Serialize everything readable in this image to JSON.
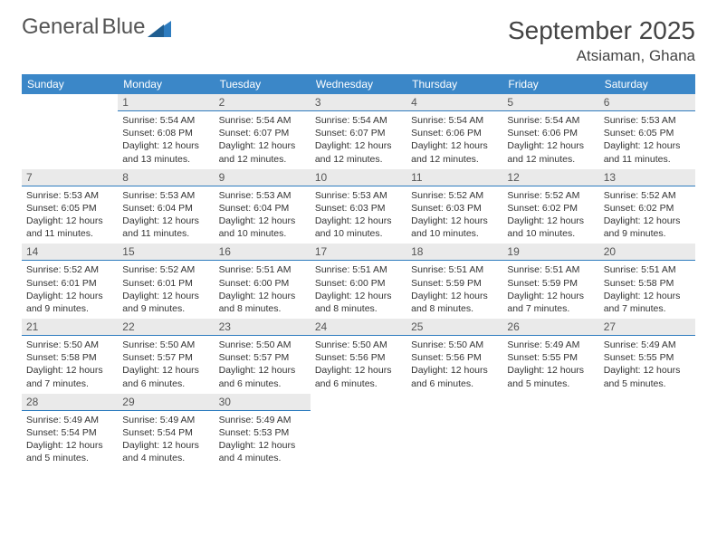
{
  "brand": {
    "name1": "General",
    "name2": "Blue",
    "logo_color": "#2e7cbf",
    "text_color": "#555555"
  },
  "header": {
    "title": "September 2025",
    "location": "Atsiaman, Ghana"
  },
  "styling": {
    "header_bg": "#3b87c8",
    "header_fg": "#ffffff",
    "daynum_bg": "#eaeaea",
    "daynum_border": "#2e7cbf",
    "body_color": "#333333",
    "page_bg": "#ffffff"
  },
  "weekdays": [
    "Sunday",
    "Monday",
    "Tuesday",
    "Wednesday",
    "Thursday",
    "Friday",
    "Saturday"
  ],
  "leading_blanks": 1,
  "days": [
    {
      "n": "1",
      "sunrise": "5:54 AM",
      "sunset": "6:08 PM",
      "daylight": "12 hours and 13 minutes."
    },
    {
      "n": "2",
      "sunrise": "5:54 AM",
      "sunset": "6:07 PM",
      "daylight": "12 hours and 12 minutes."
    },
    {
      "n": "3",
      "sunrise": "5:54 AM",
      "sunset": "6:07 PM",
      "daylight": "12 hours and 12 minutes."
    },
    {
      "n": "4",
      "sunrise": "5:54 AM",
      "sunset": "6:06 PM",
      "daylight": "12 hours and 12 minutes."
    },
    {
      "n": "5",
      "sunrise": "5:54 AM",
      "sunset": "6:06 PM",
      "daylight": "12 hours and 12 minutes."
    },
    {
      "n": "6",
      "sunrise": "5:53 AM",
      "sunset": "6:05 PM",
      "daylight": "12 hours and 11 minutes."
    },
    {
      "n": "7",
      "sunrise": "5:53 AM",
      "sunset": "6:05 PM",
      "daylight": "12 hours and 11 minutes."
    },
    {
      "n": "8",
      "sunrise": "5:53 AM",
      "sunset": "6:04 PM",
      "daylight": "12 hours and 11 minutes."
    },
    {
      "n": "9",
      "sunrise": "5:53 AM",
      "sunset": "6:04 PM",
      "daylight": "12 hours and 10 minutes."
    },
    {
      "n": "10",
      "sunrise": "5:53 AM",
      "sunset": "6:03 PM",
      "daylight": "12 hours and 10 minutes."
    },
    {
      "n": "11",
      "sunrise": "5:52 AM",
      "sunset": "6:03 PM",
      "daylight": "12 hours and 10 minutes."
    },
    {
      "n": "12",
      "sunrise": "5:52 AM",
      "sunset": "6:02 PM",
      "daylight": "12 hours and 10 minutes."
    },
    {
      "n": "13",
      "sunrise": "5:52 AM",
      "sunset": "6:02 PM",
      "daylight": "12 hours and 9 minutes."
    },
    {
      "n": "14",
      "sunrise": "5:52 AM",
      "sunset": "6:01 PM",
      "daylight": "12 hours and 9 minutes."
    },
    {
      "n": "15",
      "sunrise": "5:52 AM",
      "sunset": "6:01 PM",
      "daylight": "12 hours and 9 minutes."
    },
    {
      "n": "16",
      "sunrise": "5:51 AM",
      "sunset": "6:00 PM",
      "daylight": "12 hours and 8 minutes."
    },
    {
      "n": "17",
      "sunrise": "5:51 AM",
      "sunset": "6:00 PM",
      "daylight": "12 hours and 8 minutes."
    },
    {
      "n": "18",
      "sunrise": "5:51 AM",
      "sunset": "5:59 PM",
      "daylight": "12 hours and 8 minutes."
    },
    {
      "n": "19",
      "sunrise": "5:51 AM",
      "sunset": "5:59 PM",
      "daylight": "12 hours and 7 minutes."
    },
    {
      "n": "20",
      "sunrise": "5:51 AM",
      "sunset": "5:58 PM",
      "daylight": "12 hours and 7 minutes."
    },
    {
      "n": "21",
      "sunrise": "5:50 AM",
      "sunset": "5:58 PM",
      "daylight": "12 hours and 7 minutes."
    },
    {
      "n": "22",
      "sunrise": "5:50 AM",
      "sunset": "5:57 PM",
      "daylight": "12 hours and 6 minutes."
    },
    {
      "n": "23",
      "sunrise": "5:50 AM",
      "sunset": "5:57 PM",
      "daylight": "12 hours and 6 minutes."
    },
    {
      "n": "24",
      "sunrise": "5:50 AM",
      "sunset": "5:56 PM",
      "daylight": "12 hours and 6 minutes."
    },
    {
      "n": "25",
      "sunrise": "5:50 AM",
      "sunset": "5:56 PM",
      "daylight": "12 hours and 6 minutes."
    },
    {
      "n": "26",
      "sunrise": "5:49 AM",
      "sunset": "5:55 PM",
      "daylight": "12 hours and 5 minutes."
    },
    {
      "n": "27",
      "sunrise": "5:49 AM",
      "sunset": "5:55 PM",
      "daylight": "12 hours and 5 minutes."
    },
    {
      "n": "28",
      "sunrise": "5:49 AM",
      "sunset": "5:54 PM",
      "daylight": "12 hours and 5 minutes."
    },
    {
      "n": "29",
      "sunrise": "5:49 AM",
      "sunset": "5:54 PM",
      "daylight": "12 hours and 4 minutes."
    },
    {
      "n": "30",
      "sunrise": "5:49 AM",
      "sunset": "5:53 PM",
      "daylight": "12 hours and 4 minutes."
    }
  ],
  "labels": {
    "sunrise": "Sunrise:",
    "sunset": "Sunset:",
    "daylight": "Daylight:"
  }
}
